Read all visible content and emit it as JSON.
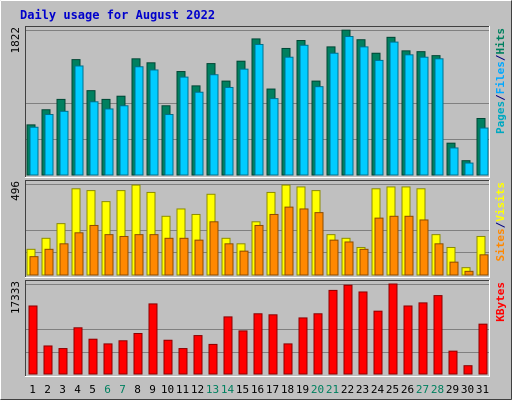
{
  "chart_data": {
    "type": "bar",
    "title": "Daily usage for August 2022",
    "days": [
      "1",
      "2",
      "3",
      "4",
      "5",
      "6",
      "7",
      "8",
      "9",
      "10",
      "11",
      "12",
      "13",
      "14",
      "15",
      "16",
      "17",
      "18",
      "19",
      "20",
      "21",
      "22",
      "23",
      "24",
      "25",
      "26",
      "27",
      "28",
      "29",
      "30",
      "31"
    ],
    "weekend_days": [
      "6",
      "7",
      "13",
      "14",
      "20",
      "21",
      "27",
      "28"
    ],
    "colors": {
      "background": "#c0c0c0",
      "title": "#0000cc",
      "hits": "#00805f",
      "files": "#00ccff",
      "pages": "#00a8c0",
      "visits": "#ffff00",
      "sites": "#ff8800",
      "kbytes": "#ff0000",
      "weekday_label": "#000000",
      "weekend_label": "#00805f",
      "grid": "#808080"
    },
    "panels": [
      {
        "id": "hits-files-pages",
        "max_label": "1822",
        "ymax": 1822,
        "gridlines": [
          1.0,
          0.5,
          0.25
        ],
        "side_label": [
          {
            "text": "Pages",
            "color": "#00a8c0"
          },
          {
            "text": "/",
            "color": "#000080"
          },
          {
            "text": "Files",
            "color": "#00a8ff"
          },
          {
            "text": "/",
            "color": "#000080"
          },
          {
            "text": "Hits",
            "color": "#00805f"
          }
        ],
        "series": [
          {
            "name": "Hits",
            "color": "#00805f",
            "values": [
              630,
              820,
              950,
              1450,
              1060,
              950,
              990,
              1460,
              1410,
              870,
              1300,
              1120,
              1400,
              1180,
              1430,
              1710,
              1080,
              1590,
              1690,
              1180,
              1610,
              1820,
              1700,
              1530,
              1730,
              1560,
              1550,
              1500,
              400,
              180,
              710
            ]
          },
          {
            "name": "Files",
            "color": "#00ccff",
            "values": [
              600,
              760,
              800,
              1370,
              920,
              830,
              870,
              1360,
              1320,
              760,
              1230,
              1040,
              1260,
              1100,
              1330,
              1640,
              960,
              1480,
              1630,
              1110,
              1530,
              1740,
              1610,
              1440,
              1670,
              1510,
              1480,
              1460,
              340,
              150,
              590
            ]
          }
        ]
      },
      {
        "id": "visits-sites",
        "max_label": "496",
        "ymax": 496,
        "gridlines": [
          1.0,
          0.5,
          0.25
        ],
        "side_label": [
          {
            "text": "Sites",
            "color": "#ff8800"
          },
          {
            "text": "/",
            "color": "#000080"
          },
          {
            "text": "Visits",
            "color": "#ffff00"
          }
        ],
        "series": [
          {
            "name": "Visits",
            "color": "#ffff00",
            "values": [
              140,
              200,
              280,
              470,
              460,
              400,
              460,
              490,
              450,
              320,
              360,
              330,
              440,
              200,
              170,
              290,
              450,
              490,
              480,
              460,
              220,
              200,
              150,
              470,
              480,
              480,
              470,
              220,
              150,
              40,
              210
            ]
          },
          {
            "name": "Sites",
            "color": "#ff8800",
            "values": [
              100,
              140,
              170,
              230,
              270,
              220,
              210,
              220,
              220,
              200,
              200,
              190,
              290,
              170,
              130,
              270,
              330,
              370,
              360,
              340,
              190,
              180,
              140,
              310,
              320,
              320,
              300,
              170,
              70,
              20,
              110
            ]
          }
        ]
      },
      {
        "id": "kbytes",
        "max_label": "17333",
        "ymax": 17333,
        "gridlines": [
          1.0,
          0.5,
          0.25
        ],
        "side_label": [
          {
            "text": "KBytes",
            "color": "#ff0000"
          }
        ],
        "series": [
          {
            "name": "KBytes",
            "color": "#ff0000",
            "values": [
              13100,
              5400,
              4900,
              8900,
              6700,
              5800,
              6400,
              7800,
              13500,
              6500,
              4900,
              7400,
              5700,
              11000,
              8300,
              11600,
              11400,
              5800,
              10800,
              11600,
              16100,
              17100,
              15800,
              12100,
              17333,
              13100,
              13700,
              15100,
              4400,
              1600,
              9600
            ]
          }
        ]
      }
    ]
  }
}
